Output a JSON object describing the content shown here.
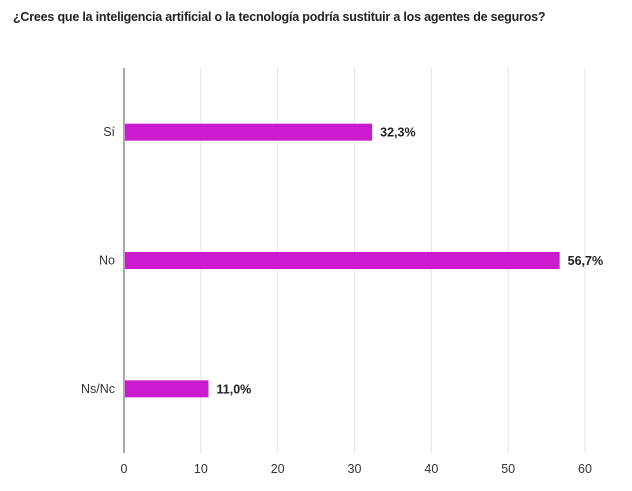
{
  "chart_data": {
    "type": "bar",
    "orientation": "horizontal",
    "title": "¿Crees que la inteligencia artificial o la tecnología podría sustituir a los agentes de seguros?",
    "categories": [
      "Sí",
      "No",
      "Ns/Nc"
    ],
    "values": [
      32.3,
      56.7,
      11.0
    ],
    "data_labels": [
      "32,3%",
      "56,7%",
      "11,0%"
    ],
    "xlim": [
      0,
      60
    ],
    "xticks": [
      0,
      10,
      20,
      30,
      40,
      50,
      60
    ],
    "xtick_labels": [
      "0",
      "10",
      "20",
      "30",
      "40",
      "50",
      "60"
    ],
    "xlabel": "",
    "ylabel": "",
    "grid": true,
    "bar_color": "#CC1ACF",
    "grid_color": "#E4E4E4",
    "axis_color": "#A8A8A8"
  }
}
